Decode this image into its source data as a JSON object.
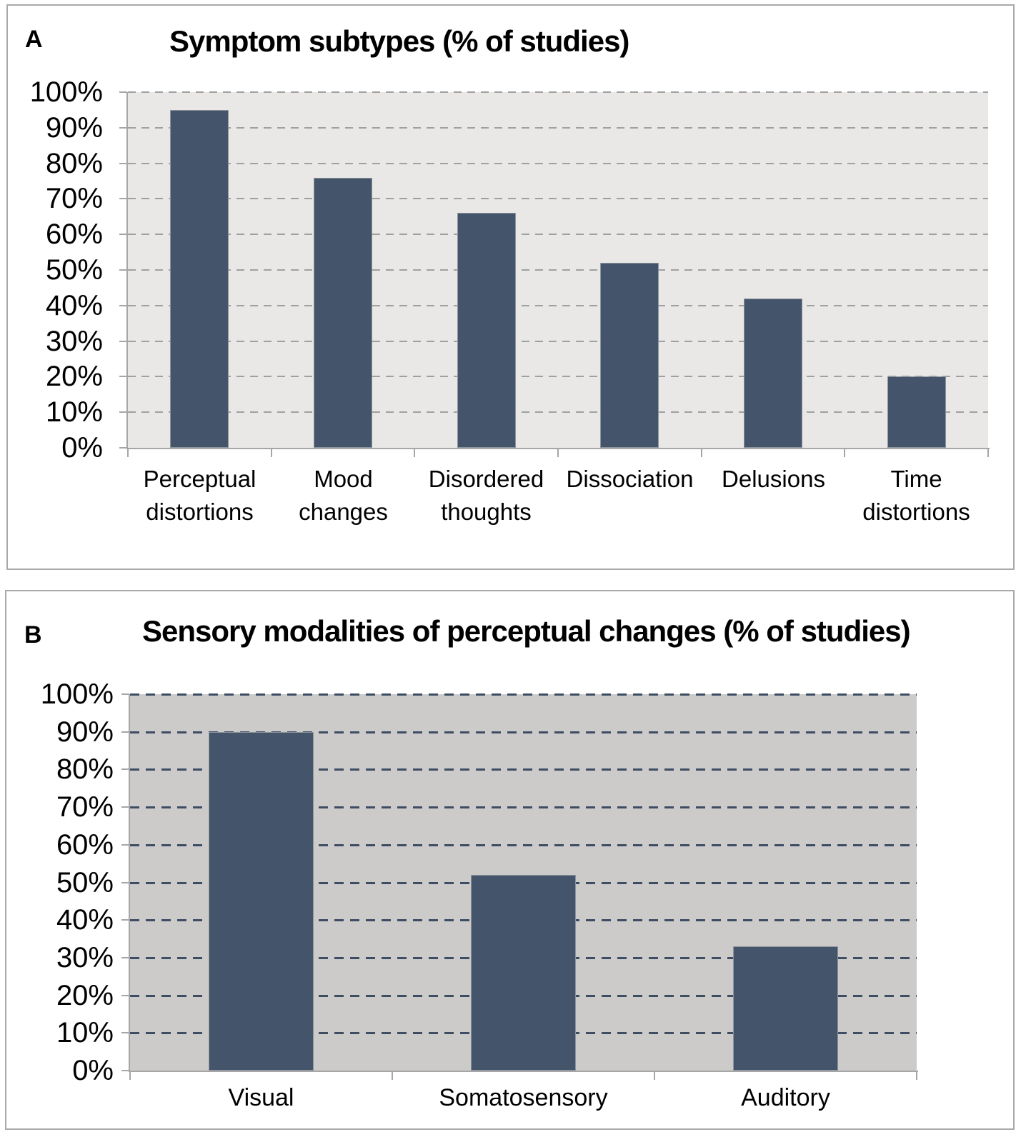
{
  "figure": {
    "description": "Two-panel bar chart figure",
    "background": "#ffffff"
  },
  "chart_data": [
    {
      "type": "bar",
      "panel_label": "A",
      "title": "Symptom subtypes (% of studies)",
      "categories": [
        "Perceptual distortions",
        "Mood changes",
        "Disordered thoughts",
        "Dissociation",
        "Delusions",
        "Time distortions"
      ],
      "values": [
        95,
        76,
        66,
        52,
        42,
        20
      ],
      "unit": "%",
      "xlabel": "",
      "ylabel": "",
      "ylim": [
        0,
        100
      ],
      "ytick_step": 10,
      "ytick_labels": [
        "0%",
        "10%",
        "20%",
        "30%",
        "40%",
        "50%",
        "60%",
        "70%",
        "80%",
        "90%",
        "100%"
      ],
      "grid": "horizontal-dashed",
      "legend": "none",
      "bar_color": "#44546a",
      "plot_bg": "#e9e8e7",
      "grid_color": "#a0a0a0",
      "axis_color": "#a6a6a6"
    },
    {
      "type": "bar",
      "panel_label": "B",
      "title": "Sensory modalities of perceptual changes (% of studies)",
      "categories": [
        "Visual",
        "Somatosensory",
        "Auditory"
      ],
      "values": [
        90,
        52,
        33
      ],
      "unit": "%",
      "xlabel": "",
      "ylabel": "",
      "ylim": [
        0,
        100
      ],
      "ytick_step": 10,
      "ytick_labels": [
        "0%",
        "10%",
        "20%",
        "30%",
        "40%",
        "50%",
        "60%",
        "70%",
        "80%",
        "90%",
        "100%"
      ],
      "grid": "horizontal-dashed",
      "legend": "none",
      "bar_color": "#44546a",
      "plot_bg": "#cccbca",
      "grid_color": "#3e4d63",
      "axis_color": "#a6a6a6"
    }
  ]
}
